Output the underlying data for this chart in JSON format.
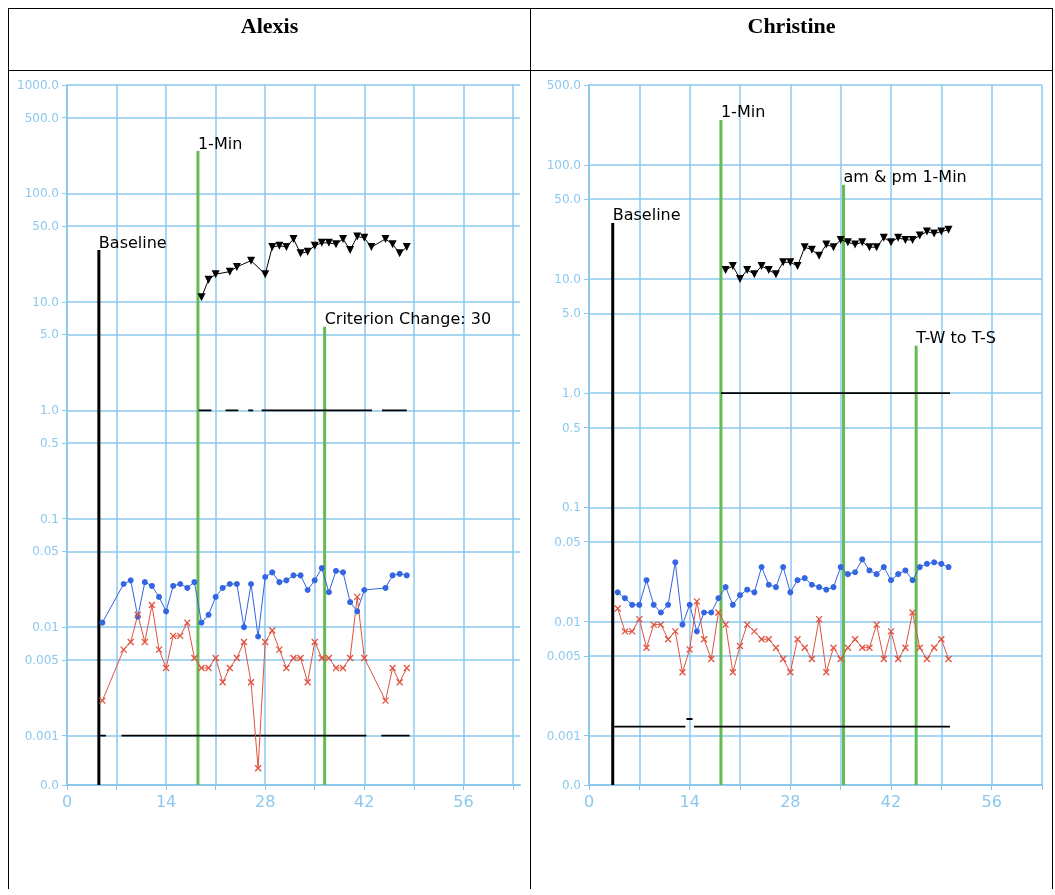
{
  "chart_data": [
    {
      "type": "line",
      "title": "Alexis",
      "log": true,
      "grid": true,
      "xlim": [
        0,
        64
      ],
      "xticks": [
        0,
        {
          "value": 7,
          "label": null
        },
        14,
        {
          "value": 21,
          "label": null
        },
        28,
        {
          "value": 35,
          "label": null
        },
        42,
        {
          "value": 49,
          "label": null
        },
        56,
        {
          "value": 63,
          "label": null
        }
      ],
      "ylim": [
        0.00035,
        1000
      ],
      "yticks": [
        {
          "value": 0.00035,
          "label": "0.0"
        },
        {
          "value": 0.001,
          "label": "0.001"
        },
        0.005,
        0.01,
        0.05,
        0.1,
        0.5,
        {
          "value": 1,
          "label": "1.0"
        },
        {
          "value": 5,
          "label": "5.0"
        },
        {
          "value": 10,
          "label": "10.0"
        },
        {
          "value": 50,
          "label": "50.0"
        },
        {
          "value": 100,
          "label": "100.0"
        },
        {
          "value": 500,
          "label": "500.0"
        },
        {
          "value": 1000,
          "label": "1000.0"
        }
      ],
      "annotations": [
        {
          "text": "Baseline",
          "x": 4.5,
          "y": 30
        },
        {
          "text": "1-Min",
          "x": 18.5,
          "y": 246
        },
        {
          "text": "Criterion Change: 30",
          "x": 36.4,
          "y": 5.9
        }
      ],
      "series": [
        {
          "color": "#000000",
          "marker": "none",
          "x": [
            4.5,
            4.5
          ],
          "values": [
            0.00035,
            30
          ]
        },
        {
          "color": "#66bb55",
          "marker": "none",
          "x": [
            18.5,
            18.5
          ],
          "values": [
            0.00035,
            246
          ]
        },
        {
          "color": "#66bb55",
          "marker": "none",
          "x": [
            36.4,
            36.4
          ],
          "values": [
            0.00035,
            5.9
          ]
        },
        {
          "color": "#000000",
          "marker": "none",
          "x": [
            4.5,
            5.5,
            6,
            7.7,
            42.3,
            43,
            44.4,
            48.4
          ],
          "values": [
            0.001,
            0.001,
            null,
            0.001,
            0.001,
            null,
            0.001,
            0.001
          ]
        },
        {
          "color": "#000000",
          "marker": "none",
          "x": [
            18.6,
            20.4,
            21,
            22.4,
            24.2,
            25,
            25.6,
            26.3,
            27,
            27.5,
            43.1,
            44,
            44.5,
            48
          ],
          "values": [
            1,
            1,
            null,
            1,
            1,
            null,
            1,
            1,
            null,
            1,
            1,
            null,
            1,
            1
          ]
        },
        {
          "color": "#000000",
          "marker": "triangle",
          "x": [
            19,
            20,
            21,
            23,
            24,
            26,
            28,
            29,
            30,
            31,
            32,
            33,
            34,
            35,
            36,
            37,
            38,
            39,
            40,
            41,
            42,
            43,
            45,
            46,
            47,
            48
          ],
          "values": [
            11,
            16,
            18,
            19,
            21,
            24,
            18,
            32,
            33,
            32,
            38,
            28,
            29,
            33,
            35,
            35,
            34,
            38,
            30,
            40,
            39,
            32,
            38,
            34,
            28,
            32
          ]
        },
        {
          "color": "#3366e0",
          "marker": "circle",
          "x": [
            5,
            8,
            9,
            10,
            11,
            12,
            13,
            14,
            15,
            16,
            17,
            18,
            19,
            20,
            21,
            22,
            23,
            24,
            25,
            26,
            27,
            28,
            29,
            30,
            31,
            32,
            33,
            34,
            35,
            36,
            37,
            38,
            39,
            40,
            41,
            42,
            45,
            46,
            47,
            48
          ],
          "values": [
            0.011,
            0.025,
            0.027,
            0.0125,
            0.026,
            0.024,
            0.019,
            0.014,
            0.024,
            0.025,
            0.023,
            0.026,
            0.011,
            0.013,
            0.019,
            0.023,
            0.025,
            0.025,
            0.01,
            0.025,
            0.0082,
            0.029,
            0.032,
            0.026,
            0.027,
            0.03,
            0.03,
            0.022,
            0.027,
            0.035,
            0.021,
            0.033,
            0.032,
            0.017,
            0.014,
            0.022,
            0.023,
            0.03,
            0.031,
            0.03
          ]
        },
        {
          "color": "#e0533f",
          "marker": "cross",
          "x": [
            5,
            8,
            9,
            10,
            11,
            12,
            13,
            14,
            15,
            16,
            17,
            18,
            19,
            20,
            21,
            22,
            23,
            24,
            25,
            26,
            27,
            28,
            29,
            30,
            31,
            32,
            33,
            34,
            35,
            36,
            37,
            38,
            39,
            40,
            41,
            42,
            45,
            46,
            47,
            48
          ],
          "values": [
            0.0021,
            0.0062,
            0.0073,
            0.013,
            0.0073,
            0.016,
            0.0062,
            0.0042,
            0.0083,
            0.0083,
            0.011,
            0.0052,
            0.0042,
            0.0042,
            0.0052,
            0.0031,
            0.0042,
            0.0052,
            0.0073,
            0.0031,
            0.0005,
            0.0073,
            0.0093,
            0.0062,
            0.0042,
            0.0052,
            0.0052,
            0.0031,
            0.0073,
            0.0052,
            0.0052,
            0.0042,
            0.0042,
            0.0052,
            0.019,
            0.0052,
            0.0021,
            0.0042,
            0.0031,
            0.0042
          ]
        }
      ]
    },
    {
      "type": "line",
      "title": "Christine",
      "log": true,
      "grid": true,
      "xlim": [
        0,
        63
      ],
      "xticks": [
        0,
        {
          "value": 7,
          "label": null
        },
        14,
        {
          "value": 21,
          "label": null
        },
        28,
        {
          "value": 35,
          "label": null
        },
        42,
        {
          "value": 49,
          "label": null
        },
        56,
        {
          "value": 63,
          "label": null
        }
      ],
      "ylim": [
        0.00037,
        500
      ],
      "yticks": [
        {
          "value": 0.00037,
          "label": "0.0"
        },
        {
          "value": 0.001,
          "label": "0.001"
        },
        0.005,
        0.01,
        0.05,
        0.1,
        0.5,
        {
          "value": 1,
          "label": "1.0"
        },
        {
          "value": 5,
          "label": "5.0"
        },
        {
          "value": 10,
          "label": "10.0"
        },
        {
          "value": 50,
          "label": "50.0"
        },
        {
          "value": 100,
          "label": "100.0"
        },
        {
          "value": 500,
          "label": "500.0"
        }
      ],
      "annotations": [
        {
          "text": "Baseline",
          "x": 3.3,
          "y": 31
        },
        {
          "text": "1-Min",
          "x": 18.35,
          "y": 247
        },
        {
          "text": "am & pm 1-Min",
          "x": 35.4,
          "y": 67
        },
        {
          "text": "T-W to T-S",
          "x": 45.5,
          "y": 2.6
        }
      ],
      "series": [
        {
          "color": "#000000",
          "marker": "none",
          "x": [
            3.3,
            3.3
          ],
          "values": [
            0.00037,
            31
          ]
        },
        {
          "color": "#66bb55",
          "marker": "none",
          "x": [
            18.35,
            18.35
          ],
          "values": [
            0.00037,
            247
          ]
        },
        {
          "color": "#66bb55",
          "marker": "none",
          "x": [
            35.4,
            35.4
          ],
          "values": [
            0.00037,
            67
          ]
        },
        {
          "color": "#66bb55",
          "marker": "none",
          "x": [
            45.5,
            45.5
          ],
          "values": [
            0.00037,
            2.6
          ]
        },
        {
          "color": "#000000",
          "marker": "none",
          "x": [
            3.5,
            13.4,
            13.45,
            13.55,
            14.4,
            14.5,
            14.6,
            50.2
          ],
          "values": [
            0.0012,
            0.0012,
            null,
            0.0014,
            0.0014,
            null,
            0.0012,
            0.0012
          ]
        },
        {
          "color": "#000000",
          "marker": "none",
          "x": [
            18.35,
            50.2
          ],
          "values": [
            1,
            1
          ]
        },
        {
          "color": "#000000",
          "marker": "triangle",
          "x": [
            19,
            20,
            21,
            22,
            23,
            24,
            25,
            26,
            27,
            28,
            29,
            30,
            31,
            32,
            33,
            34,
            35,
            36,
            37,
            38,
            39,
            40,
            41,
            42,
            43,
            44,
            45,
            46,
            47,
            48,
            49,
            50
          ],
          "values": [
            12,
            13,
            10,
            12,
            11,
            13,
            12,
            11,
            14,
            14,
            13,
            19,
            18,
            16,
            20,
            19,
            22,
            21,
            20,
            21,
            19,
            19,
            23,
            21,
            23,
            22,
            22,
            24,
            26,
            25,
            26,
            27
          ]
        },
        {
          "color": "#3366e0",
          "marker": "circle",
          "x": [
            4,
            5,
            6,
            7,
            8,
            9,
            10,
            11,
            12,
            13,
            14,
            15,
            16,
            17,
            18,
            19,
            20,
            21,
            22,
            23,
            24,
            25,
            26,
            27,
            28,
            29,
            30,
            31,
            32,
            33,
            34,
            35,
            36,
            37,
            38,
            39,
            40,
            41,
            42,
            43,
            44,
            45,
            46,
            47,
            48,
            49,
            50
          ],
          "values": [
            0.018,
            0.016,
            0.014,
            0.014,
            0.023,
            0.014,
            0.012,
            0.014,
            0.033,
            0.0094,
            0.014,
            0.0082,
            0.012,
            0.012,
            0.016,
            0.02,
            0.014,
            0.017,
            0.019,
            0.018,
            0.03,
            0.021,
            0.02,
            0.03,
            0.018,
            0.023,
            0.024,
            0.021,
            0.02,
            0.019,
            0.02,
            0.03,
            0.026,
            0.027,
            0.035,
            0.028,
            0.026,
            0.03,
            0.023,
            0.026,
            0.028,
            0.023,
            0.03,
            0.032,
            0.033,
            0.032,
            0.03
          ]
        },
        {
          "color": "#e0533f",
          "marker": "cross",
          "x": [
            4,
            5,
            6,
            7,
            8,
            9,
            10,
            11,
            12,
            13,
            14,
            15,
            16,
            17,
            18,
            19,
            20,
            21,
            22,
            23,
            24,
            25,
            26,
            27,
            28,
            29,
            30,
            31,
            32,
            33,
            34,
            35,
            36,
            37,
            38,
            39,
            40,
            41,
            42,
            43,
            44,
            45,
            46,
            47,
            48,
            49,
            50
          ],
          "values": [
            0.013,
            0.0082,
            0.0082,
            0.0105,
            0.0059,
            0.0094,
            0.0094,
            0.007,
            0.0082,
            0.0036,
            0.0057,
            0.015,
            0.007,
            0.0047,
            0.012,
            0.0094,
            0.0036,
            0.0061,
            0.0094,
            0.0082,
            0.007,
            0.007,
            0.0059,
            0.0047,
            0.0036,
            0.007,
            0.0059,
            0.0047,
            0.0105,
            0.0036,
            0.0059,
            0.0047,
            0.0059,
            0.007,
            0.0059,
            0.0059,
            0.0094,
            0.0047,
            0.0082,
            0.0047,
            0.0059,
            0.012,
            0.0059,
            0.0047,
            0.0059,
            0.007,
            0.0047
          ]
        }
      ]
    }
  ]
}
